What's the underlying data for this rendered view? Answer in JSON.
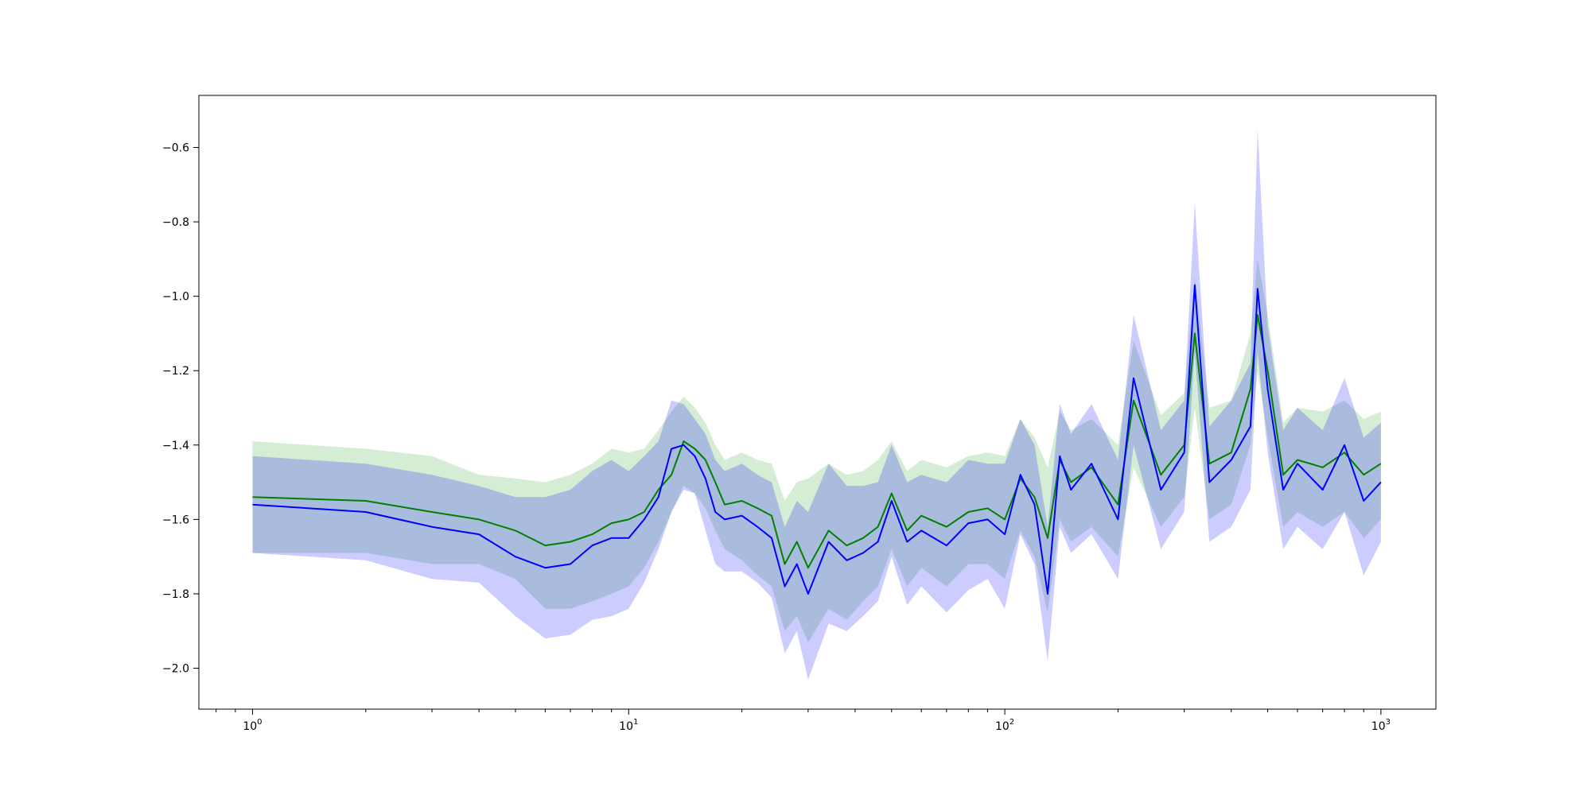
{
  "chart_data": {
    "type": "line",
    "xscale": "log",
    "xlim": [
      0.72,
      1400
    ],
    "ylim": [
      -2.11,
      -0.46
    ],
    "grid": false,
    "xticks": [
      {
        "value": 1,
        "base": "10",
        "exp": "0"
      },
      {
        "value": 10,
        "base": "10",
        "exp": "1"
      },
      {
        "value": 100,
        "base": "10",
        "exp": "2"
      },
      {
        "value": 1000,
        "base": "10",
        "exp": "3"
      }
    ],
    "yticks": [
      {
        "value": -2.0,
        "label": "−2.0"
      },
      {
        "value": -1.8,
        "label": "−1.8"
      },
      {
        "value": -1.6,
        "label": "−1.6"
      },
      {
        "value": -1.4,
        "label": "−1.4"
      },
      {
        "value": -1.2,
        "label": "−1.2"
      },
      {
        "value": -1.0,
        "label": "−1.0"
      },
      {
        "value": -0.8,
        "label": "−0.8"
      },
      {
        "value": -0.6,
        "label": "−0.6"
      }
    ],
    "series": [
      {
        "color": "#008000",
        "band_color": "#2ca02c",
        "x": [
          1,
          2,
          3,
          4,
          5,
          6,
          7,
          8,
          9,
          10,
          11,
          12,
          13,
          14,
          15,
          16,
          17,
          18,
          20,
          22,
          24,
          26,
          28,
          30,
          34,
          38,
          42,
          46,
          50,
          55,
          60,
          70,
          80,
          90,
          100,
          110,
          120,
          130,
          140,
          150,
          170,
          200,
          220,
          260,
          300,
          320,
          350,
          400,
          450,
          470,
          500,
          550,
          600,
          700,
          800,
          900,
          1000
        ],
        "y": [
          -1.54,
          -1.55,
          -1.58,
          -1.6,
          -1.63,
          -1.67,
          -1.66,
          -1.64,
          -1.61,
          -1.6,
          -1.58,
          -1.52,
          -1.48,
          -1.39,
          -1.41,
          -1.44,
          -1.5,
          -1.56,
          -1.55,
          -1.57,
          -1.59,
          -1.72,
          -1.66,
          -1.73,
          -1.63,
          -1.67,
          -1.65,
          -1.62,
          -1.53,
          -1.63,
          -1.59,
          -1.62,
          -1.58,
          -1.57,
          -1.6,
          -1.49,
          -1.54,
          -1.65,
          -1.44,
          -1.5,
          -1.46,
          -1.56,
          -1.28,
          -1.48,
          -1.4,
          -1.1,
          -1.45,
          -1.42,
          -1.25,
          -1.05,
          -1.2,
          -1.48,
          -1.44,
          -1.46,
          -1.42,
          -1.48,
          -1.45
        ],
        "lower": [
          -1.69,
          -1.69,
          -1.72,
          -1.72,
          -1.76,
          -1.84,
          -1.84,
          -1.82,
          -1.8,
          -1.78,
          -1.73,
          -1.66,
          -1.58,
          -1.51,
          -1.53,
          -1.57,
          -1.63,
          -1.68,
          -1.71,
          -1.75,
          -1.78,
          -1.9,
          -1.86,
          -1.93,
          -1.84,
          -1.87,
          -1.82,
          -1.78,
          -1.68,
          -1.78,
          -1.73,
          -1.78,
          -1.72,
          -1.72,
          -1.76,
          -1.63,
          -1.7,
          -1.85,
          -1.6,
          -1.66,
          -1.62,
          -1.7,
          -1.46,
          -1.62,
          -1.54,
          -1.3,
          -1.6,
          -1.56,
          -1.4,
          -1.2,
          -1.38,
          -1.62,
          -1.58,
          -1.62,
          -1.58,
          -1.65,
          -1.6
        ],
        "upper": [
          -1.39,
          -1.41,
          -1.43,
          -1.48,
          -1.49,
          -1.5,
          -1.48,
          -1.45,
          -1.41,
          -1.42,
          -1.41,
          -1.36,
          -1.31,
          -1.27,
          -1.3,
          -1.34,
          -1.4,
          -1.44,
          -1.42,
          -1.44,
          -1.45,
          -1.55,
          -1.5,
          -1.49,
          -1.45,
          -1.48,
          -1.47,
          -1.44,
          -1.39,
          -1.47,
          -1.44,
          -1.46,
          -1.43,
          -1.42,
          -1.43,
          -1.33,
          -1.38,
          -1.46,
          -1.31,
          -1.36,
          -1.33,
          -1.4,
          -1.12,
          -1.32,
          -1.26,
          -0.95,
          -1.3,
          -1.28,
          -1.1,
          -0.9,
          -1.05,
          -1.34,
          -1.3,
          -1.31,
          -1.28,
          -1.33,
          -1.31
        ]
      },
      {
        "color": "#0000ff",
        "band_color": "#0000ff",
        "x": [
          1,
          2,
          3,
          4,
          5,
          6,
          7,
          8,
          9,
          10,
          11,
          12,
          13,
          14,
          15,
          16,
          17,
          18,
          20,
          22,
          24,
          26,
          28,
          30,
          34,
          38,
          42,
          46,
          50,
          55,
          60,
          70,
          80,
          90,
          100,
          110,
          120,
          130,
          140,
          150,
          170,
          200,
          220,
          260,
          300,
          320,
          350,
          400,
          450,
          470,
          500,
          550,
          600,
          700,
          800,
          900,
          1000
        ],
        "y": [
          -1.56,
          -1.58,
          -1.62,
          -1.64,
          -1.7,
          -1.73,
          -1.72,
          -1.67,
          -1.65,
          -1.65,
          -1.6,
          -1.54,
          -1.41,
          -1.4,
          -1.43,
          -1.49,
          -1.58,
          -1.6,
          -1.59,
          -1.62,
          -1.65,
          -1.78,
          -1.72,
          -1.8,
          -1.66,
          -1.71,
          -1.69,
          -1.66,
          -1.55,
          -1.66,
          -1.63,
          -1.67,
          -1.61,
          -1.6,
          -1.64,
          -1.48,
          -1.56,
          -1.8,
          -1.43,
          -1.52,
          -1.45,
          -1.6,
          -1.22,
          -1.52,
          -1.42,
          -0.97,
          -1.5,
          -1.44,
          -1.35,
          -0.98,
          -1.25,
          -1.52,
          -1.45,
          -1.52,
          -1.4,
          -1.55,
          -1.5
        ],
        "lower": [
          -1.69,
          -1.71,
          -1.76,
          -1.77,
          -1.86,
          -1.92,
          -1.91,
          -1.87,
          -1.86,
          -1.84,
          -1.77,
          -1.68,
          -1.58,
          -1.52,
          -1.53,
          -1.63,
          -1.72,
          -1.74,
          -1.74,
          -1.77,
          -1.81,
          -1.96,
          -1.9,
          -2.03,
          -1.88,
          -1.9,
          -1.86,
          -1.82,
          -1.7,
          -1.83,
          -1.78,
          -1.85,
          -1.79,
          -1.76,
          -1.84,
          -1.64,
          -1.72,
          -1.98,
          -1.62,
          -1.69,
          -1.64,
          -1.76,
          -1.4,
          -1.68,
          -1.58,
          -1.15,
          -1.66,
          -1.62,
          -1.52,
          -1.15,
          -1.42,
          -1.68,
          -1.62,
          -1.68,
          -1.58,
          -1.75,
          -1.66
        ],
        "upper": [
          -1.43,
          -1.45,
          -1.48,
          -1.51,
          -1.54,
          -1.54,
          -1.52,
          -1.47,
          -1.44,
          -1.47,
          -1.43,
          -1.39,
          -1.28,
          -1.29,
          -1.33,
          -1.37,
          -1.44,
          -1.47,
          -1.45,
          -1.48,
          -1.5,
          -1.62,
          -1.55,
          -1.58,
          -1.45,
          -1.51,
          -1.51,
          -1.5,
          -1.4,
          -1.5,
          -1.48,
          -1.5,
          -1.44,
          -1.45,
          -1.45,
          -1.33,
          -1.4,
          -1.62,
          -1.29,
          -1.37,
          -1.29,
          -1.44,
          -1.05,
          -1.36,
          -1.28,
          -0.75,
          -1.35,
          -1.28,
          -1.18,
          -0.55,
          -1.08,
          -1.36,
          -1.3,
          -1.36,
          -1.22,
          -1.38,
          -1.34
        ]
      }
    ]
  }
}
